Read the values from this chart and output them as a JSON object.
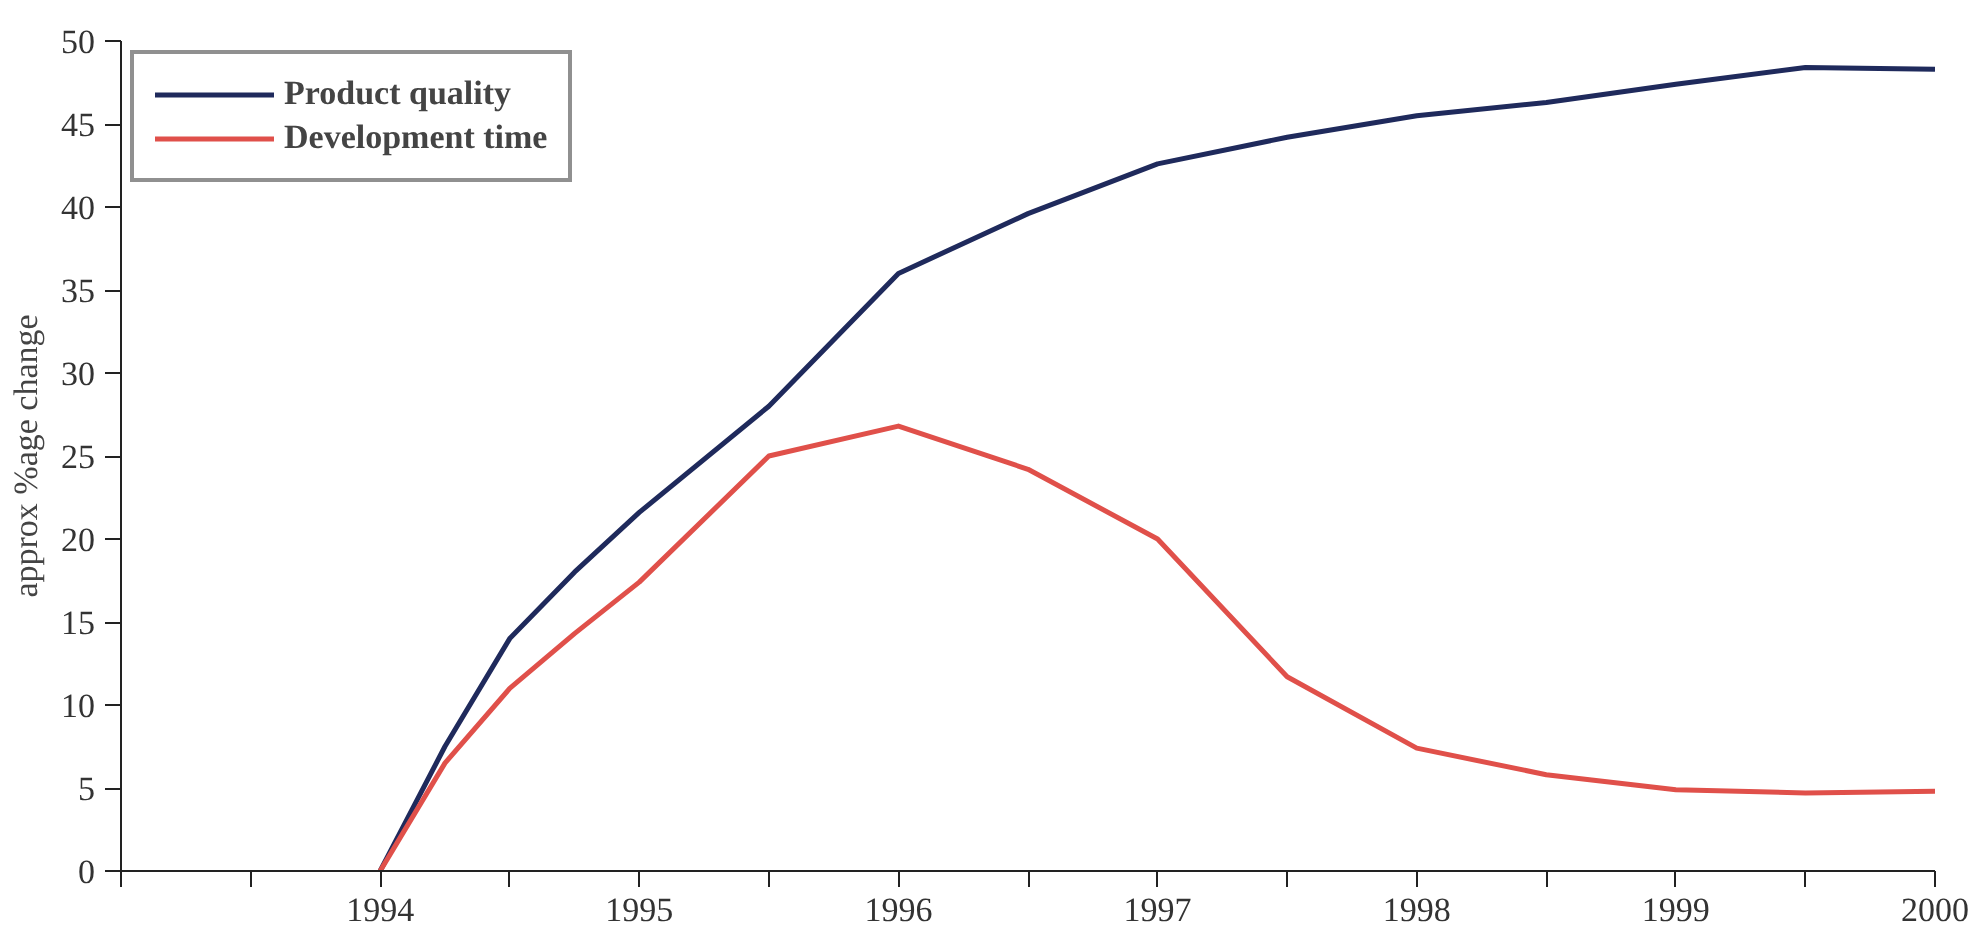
{
  "chart_data": {
    "type": "line",
    "ylabel": "approx %age change",
    "x": [
      1994,
      1994.25,
      1994.5,
      1994.75,
      1995,
      1995.5,
      1996,
      1996.5,
      1997,
      1997.5,
      1998,
      1998.5,
      1999,
      1999.5,
      2000
    ],
    "series": [
      {
        "name": "Product quality",
        "color": "#1f2a5c",
        "values": [
          0,
          7.5,
          14,
          18,
          21.6,
          28,
          36,
          39.6,
          42.6,
          44.2,
          45.5,
          46.3,
          47.4,
          48.4,
          48.3
        ]
      },
      {
        "name": "Development time",
        "color": "#e0504a",
        "values": [
          0,
          6.5,
          11,
          14.3,
          17.4,
          25,
          26.8,
          24.2,
          20,
          11.7,
          7.4,
          5.8,
          4.9,
          4.7,
          4.8
        ]
      }
    ],
    "xlim": [
      1993,
      2000
    ],
    "xticks": [
      {
        "value": 1993,
        "label": null
      },
      {
        "value": 1993.5,
        "label": null
      },
      1994,
      {
        "value": 1994.5,
        "label": null
      },
      1995,
      {
        "value": 1995.5,
        "label": null
      },
      1996,
      {
        "value": 1996.5,
        "label": null
      },
      1997,
      {
        "value": 1997.5,
        "label": null
      },
      1998,
      {
        "value": 1998.5,
        "label": null
      },
      1999,
      {
        "value": 1999.5,
        "label": null
      },
      2000
    ],
    "ylim": [
      0,
      50
    ],
    "yticks": [
      0,
      5,
      10,
      15,
      20,
      25,
      30,
      35,
      40,
      45,
      50
    ],
    "grid": false,
    "legend": "top left",
    "marker": "none",
    "line_style": "solid"
  }
}
